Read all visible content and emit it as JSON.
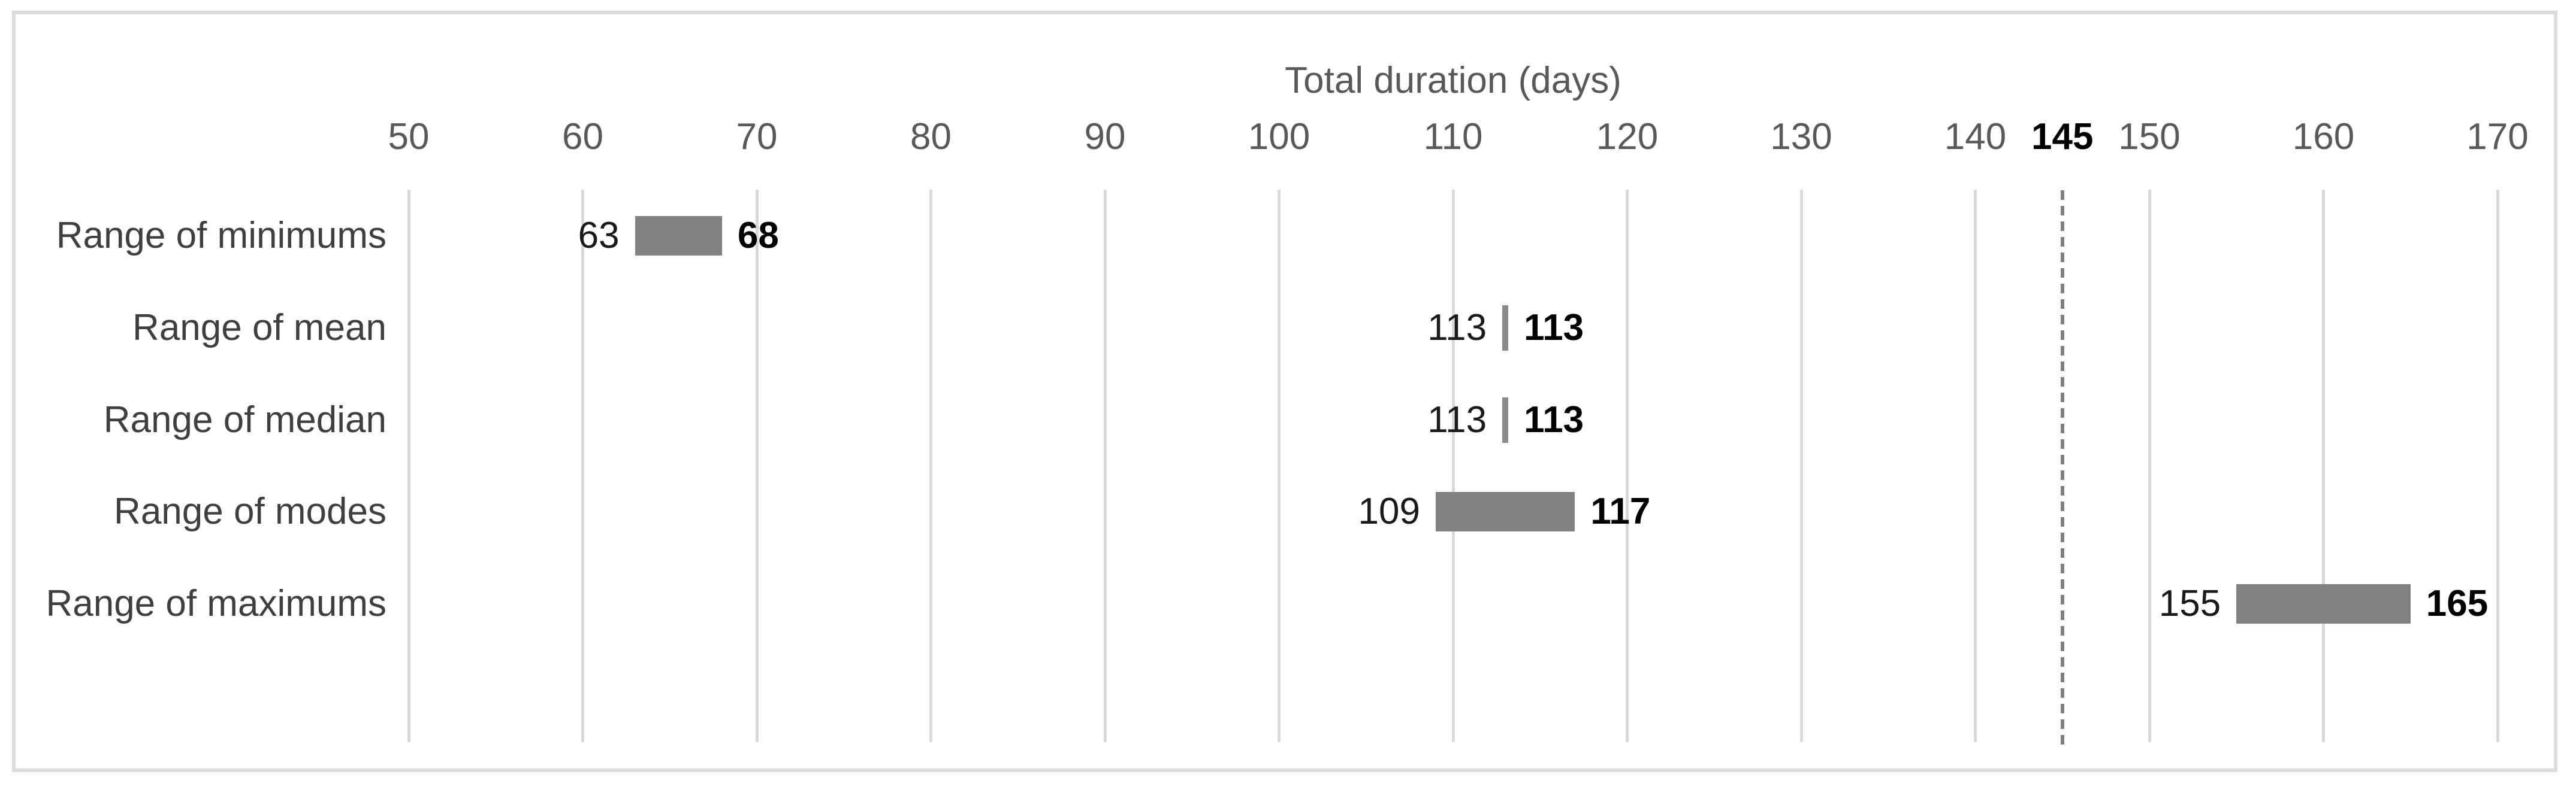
{
  "chart_data": {
    "type": "bar",
    "subtype": "horizontal-range",
    "title": "Total duration (days)",
    "x_axis": {
      "min": 50,
      "max": 170,
      "tick_step": 10,
      "ticks": [
        50,
        60,
        70,
        80,
        90,
        100,
        110,
        120,
        130,
        140,
        150,
        160,
        170
      ],
      "special_tick": 145
    },
    "reference_line": {
      "value": 145,
      "style": "dashed"
    },
    "grid": true,
    "legend": false,
    "categories": [
      "Range of minimums",
      "Range of mean",
      "Range of median",
      "Range of modes",
      "Range of maximums"
    ],
    "series": [
      {
        "name": "Range",
        "points": [
          {
            "category": "Range of minimums",
            "start": 63,
            "end": 68,
            "start_label": "63",
            "end_label": "68"
          },
          {
            "category": "Range of mean",
            "start": 113,
            "end": 113,
            "start_label": "113",
            "end_label": "113"
          },
          {
            "category": "Range of median",
            "start": 113,
            "end": 113,
            "start_label": "113",
            "end_label": "113"
          },
          {
            "category": "Range of modes",
            "start": 109,
            "end": 117,
            "start_label": "109",
            "end_label": "117"
          },
          {
            "category": "Range of maximums",
            "start": 155,
            "end": 165,
            "start_label": "155",
            "end_label": "165"
          }
        ]
      }
    ],
    "colors": {
      "bar": "#828282",
      "gridline": "#d9d9d9",
      "reference_line": "#7f7f7f",
      "tick_label": "#595959",
      "special_tick_label": "#000000",
      "category_label": "#3f3f3f",
      "start_value_label": "#1a1a1a",
      "end_value_label": "#000000",
      "title": "#595959",
      "frame_border": "#dcdcdc",
      "background": "#ffffff"
    }
  }
}
